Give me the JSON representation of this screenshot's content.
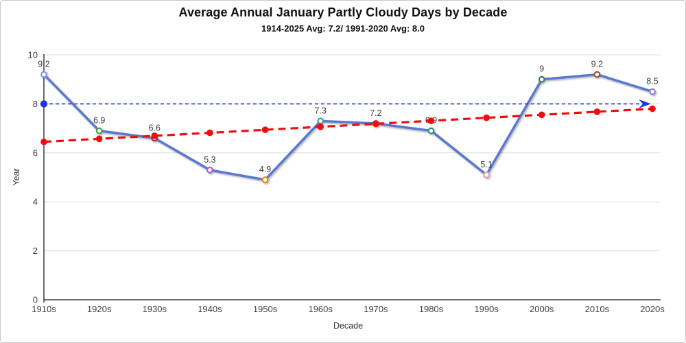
{
  "title": "Average Annual January Partly Cloudy Days by Decade",
  "subtitle": "1914-2025 Avg: 7.2/ 1991-2020 Avg: 8.0",
  "chart_data": {
    "type": "line",
    "title": "Average Annual January Partly Cloudy Days by Decade",
    "subtitle": "1914-2025 Avg: 7.2/ 1991-2020 Avg: 8.0",
    "xlabel": "Decade",
    "ylabel": "Year",
    "categories": [
      "1910s",
      "1920s",
      "1930s",
      "1940s",
      "1950s",
      "1960s",
      "1970s",
      "1980s",
      "1990s",
      "2000s",
      "2010s",
      "2020s"
    ],
    "yticks": [
      0,
      2,
      4,
      6,
      8,
      10
    ],
    "ylim": [
      0,
      10
    ],
    "grid": true,
    "legend": "none",
    "series": [
      {
        "name": "partly-cloudy-days",
        "type": "line",
        "values": [
          9.2,
          6.9,
          6.6,
          5.3,
          4.9,
          7.3,
          7.2,
          6.9,
          5.1,
          9,
          9.2,
          8.5
        ],
        "point_labels": [
          "9.2",
          "6.9",
          "6.6",
          "5.3",
          "4.9",
          "7.3",
          "7.2",
          "6.9",
          "5.1",
          "9",
          "9.2",
          "8.5"
        ],
        "line_color": "#5A78D1",
        "marker_colors": [
          "#7D9BE0",
          "#4FA24F",
          "#B32424",
          "#B55BC8",
          "#E08A1E",
          "#2FA3A3",
          "#D94F4F",
          "#2F8F8F",
          "#E3A6B5",
          "#3F7D4F",
          "#96592B",
          "#9183DC"
        ]
      },
      {
        "name": "linear-trendline",
        "type": "trendline",
        "start_value": 6.45,
        "end_value": 7.8,
        "color": "#F00C0C",
        "style": "dashed",
        "markers": true
      },
      {
        "name": "reference-line-1991-2020-avg",
        "type": "reference-line",
        "value": 8.0,
        "color": "#2136D6",
        "style": "dashed",
        "start_marker": "dot",
        "end_marker": "arrow"
      }
    ],
    "text_colors": {
      "ticks": "#404040",
      "data_labels": "#3D3D3D",
      "axis_titles": "#333333"
    },
    "grid_color": "#DDDDDD",
    "axis_color": "#1A1A1A"
  }
}
